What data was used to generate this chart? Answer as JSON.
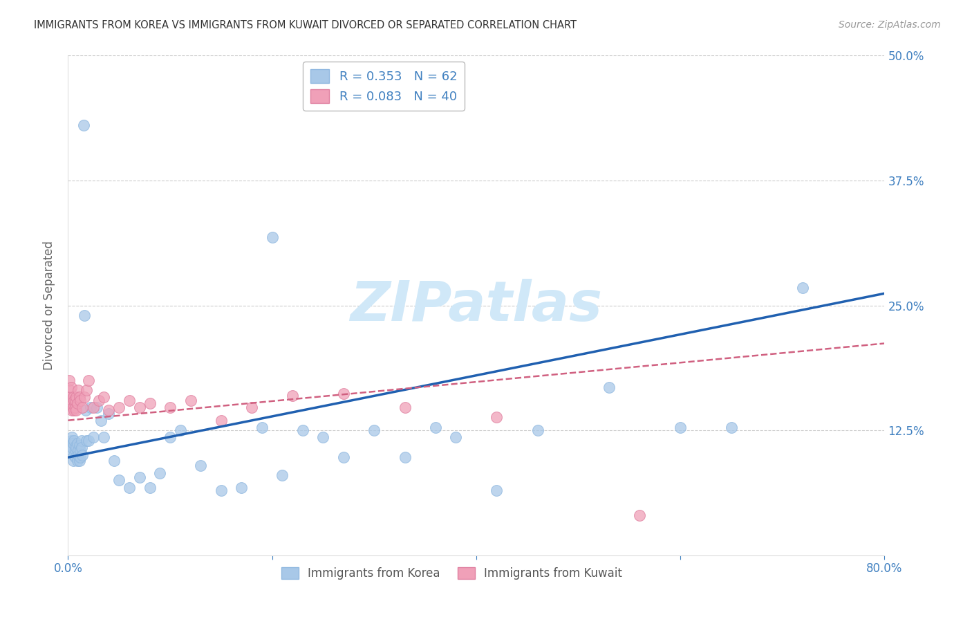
{
  "title": "IMMIGRANTS FROM KOREA VS IMMIGRANTS FROM KUWAIT DIVORCED OR SEPARATED CORRELATION CHART",
  "source": "Source: ZipAtlas.com",
  "ylabel": "Divorced or Separated",
  "xlim": [
    0.0,
    0.8
  ],
  "ylim": [
    0.0,
    0.5
  ],
  "yticks": [
    0.125,
    0.25,
    0.375,
    0.5
  ],
  "ytick_labels": [
    "12.5%",
    "25.0%",
    "37.5%",
    "50.0%"
  ],
  "korea_color": "#a8c8e8",
  "kuwait_color": "#f0a0b8",
  "korea_line_color": "#2060b0",
  "kuwait_line_color": "#d06080",
  "axis_label_color": "#4080c0",
  "tick_color": "#4080c0",
  "background_color": "#ffffff",
  "grid_color": "#cccccc",
  "watermark_text": "ZIPatlas",
  "watermark_color": "#d0e8f8",
  "korea_x": [
    0.002,
    0.003,
    0.003,
    0.004,
    0.004,
    0.005,
    0.005,
    0.006,
    0.006,
    0.007,
    0.007,
    0.008,
    0.008,
    0.009,
    0.009,
    0.01,
    0.01,
    0.011,
    0.011,
    0.012,
    0.012,
    0.013,
    0.013,
    0.014,
    0.015,
    0.016,
    0.017,
    0.018,
    0.02,
    0.022,
    0.025,
    0.028,
    0.032,
    0.035,
    0.04,
    0.045,
    0.05,
    0.06,
    0.07,
    0.08,
    0.09,
    0.1,
    0.11,
    0.13,
    0.15,
    0.17,
    0.19,
    0.21,
    0.23,
    0.25,
    0.27,
    0.3,
    0.33,
    0.36,
    0.2,
    0.38,
    0.42,
    0.46,
    0.53,
    0.6,
    0.65,
    0.72
  ],
  "korea_y": [
    0.11,
    0.105,
    0.115,
    0.108,
    0.118,
    0.095,
    0.112,
    0.1,
    0.115,
    0.105,
    0.098,
    0.11,
    0.108,
    0.095,
    0.112,
    0.105,
    0.1,
    0.095,
    0.11,
    0.105,
    0.098,
    0.115,
    0.108,
    0.1,
    0.43,
    0.24,
    0.145,
    0.115,
    0.115,
    0.148,
    0.118,
    0.148,
    0.135,
    0.118,
    0.142,
    0.095,
    0.075,
    0.068,
    0.078,
    0.068,
    0.082,
    0.118,
    0.125,
    0.09,
    0.065,
    0.068,
    0.128,
    0.08,
    0.125,
    0.118,
    0.098,
    0.125,
    0.098,
    0.128,
    0.318,
    0.118,
    0.065,
    0.125,
    0.168,
    0.128,
    0.128,
    0.268
  ],
  "kuwait_x": [
    0.001,
    0.002,
    0.002,
    0.003,
    0.003,
    0.004,
    0.004,
    0.005,
    0.005,
    0.006,
    0.006,
    0.007,
    0.007,
    0.008,
    0.008,
    0.009,
    0.01,
    0.011,
    0.012,
    0.014,
    0.016,
    0.018,
    0.02,
    0.025,
    0.03,
    0.035,
    0.04,
    0.05,
    0.06,
    0.07,
    0.08,
    0.1,
    0.12,
    0.15,
    0.18,
    0.22,
    0.27,
    0.33,
    0.42,
    0.56
  ],
  "kuwait_y": [
    0.175,
    0.165,
    0.158,
    0.15,
    0.168,
    0.155,
    0.145,
    0.158,
    0.148,
    0.155,
    0.145,
    0.148,
    0.155,
    0.158,
    0.145,
    0.152,
    0.165,
    0.158,
    0.155,
    0.148,
    0.158,
    0.165,
    0.175,
    0.148,
    0.155,
    0.158,
    0.145,
    0.148,
    0.155,
    0.148,
    0.152,
    0.148,
    0.155,
    0.135,
    0.148,
    0.16,
    0.162,
    0.148,
    0.138,
    0.04
  ],
  "korea_line_x": [
    0.0,
    0.8
  ],
  "korea_line_y": [
    0.098,
    0.262
  ],
  "kuwait_line_x": [
    0.0,
    0.8
  ],
  "kuwait_line_y": [
    0.135,
    0.212
  ]
}
